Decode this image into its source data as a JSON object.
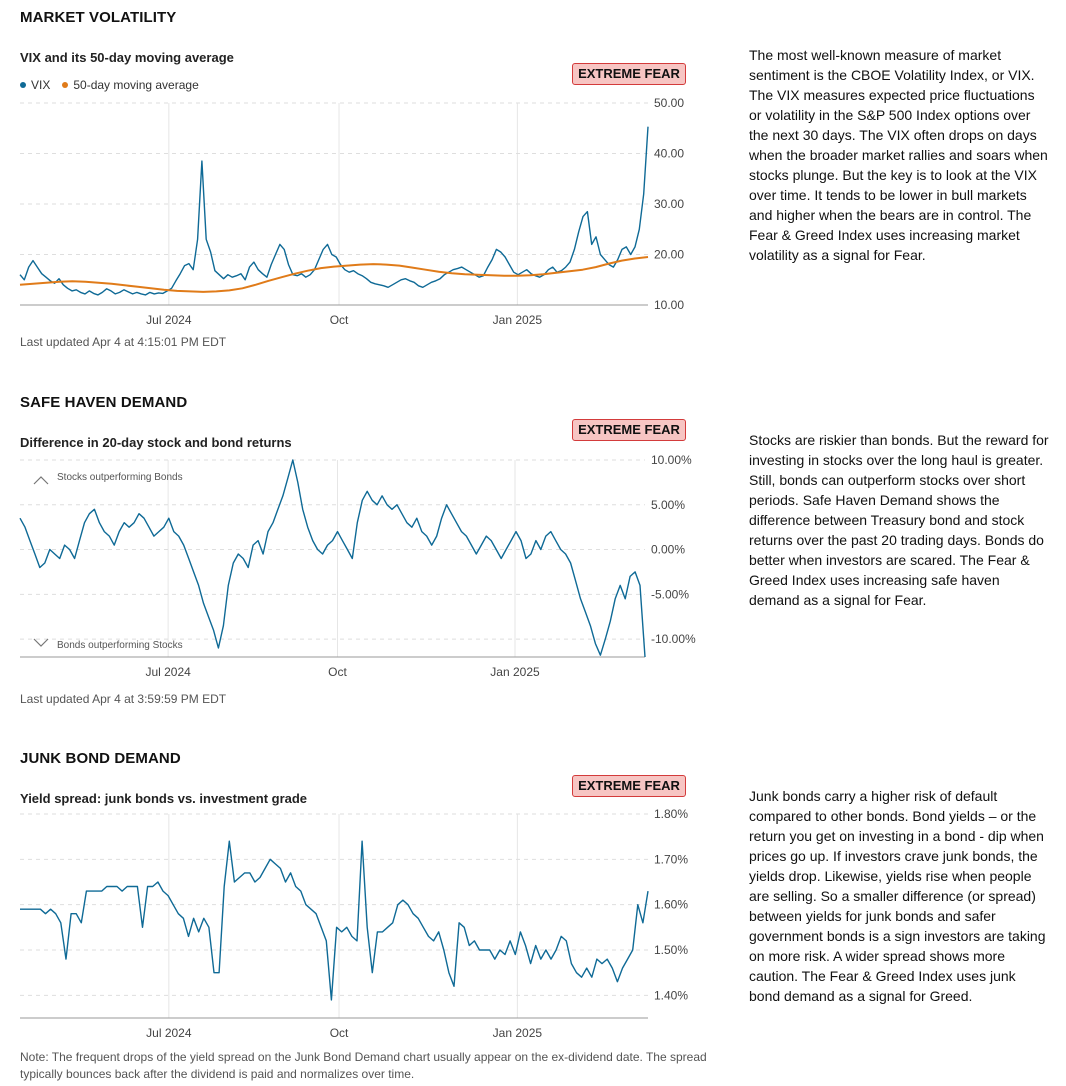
{
  "sections": [
    {
      "title": "MARKET VOLATILITY",
      "chart_title": "VIX and its 50-day moving average",
      "badge": "EXTREME FEAR",
      "legend": [
        {
          "label": "VIX",
          "color": "#0f6a96"
        },
        {
          "label": "50-day moving average",
          "color": "#e07b19"
        }
      ],
      "updated": "Last updated Apr 4 at 4:15:01 PM EDT",
      "description": "The most well-known measure of market sentiment is the CBOE Volatility Index, or VIX. The VIX measures expected price fluctuations or volatility in the S&P 500 Index options over the next 30 days. The VIX often drops on days when the broader market rallies and soars when stocks plunge. But the key is to look at the VIX over time. It tends to be lower in bull markets and higher when the bears are in control. The Fear & Greed Index uses increasing market volatility as a signal for Fear."
    },
    {
      "title": "SAFE HAVEN DEMAND",
      "chart_title": "Difference in 20-day stock and bond returns",
      "badge": "EXTREME FEAR",
      "annotations": [
        "Stocks outperforming Bonds",
        "Bonds outperforming Stocks"
      ],
      "updated": "Last updated Apr 4 at 3:59:59 PM EDT",
      "description": "Stocks are riskier than bonds. But the reward for investing in stocks over the long haul is greater. Still, bonds can outperform stocks over short periods. Safe Haven Demand shows the difference between Treasury bond and stock returns over the past 20 trading days. Bonds do better when investors are scared. The Fear & Greed Index uses increasing safe haven demand as a signal for Fear."
    },
    {
      "title": "JUNK BOND DEMAND",
      "chart_title": "Yield spread: junk bonds vs. investment grade",
      "badge": "EXTREME FEAR",
      "description": "Junk bonds carry a higher risk of default compared to other bonds. Bond yields – or the return you get on investing in a bond - dip when prices go up. If investors crave junk bonds, the yields drop. Likewise, yields rise when people are selling. So a smaller difference (or spread) between yields for junk bonds and safer government bonds is a sign investors are taking on more risk. A wider spread shows more caution. The Fear & Greed Index uses junk bond demand as a signal for Greed."
    }
  ],
  "note": "Note: The frequent drops of the yield spread on the Junk Bond Demand chart usually appear on the ex-dividend date. The spread typically bounces back after the dividend is paid and normalizes over time.",
  "chart_data": [
    {
      "type": "line",
      "title": "VIX and its 50-day moving average",
      "x_tick_labels": [
        "Jul 2024",
        "Oct",
        "Jan 2025"
      ],
      "y_tick_labels": [
        "10.00",
        "20.00",
        "30.00",
        "40.00",
        "50.00"
      ],
      "ylim": [
        10,
        50
      ],
      "grid": true,
      "legend": "top-left",
      "series": [
        {
          "name": "VIX",
          "color": "#0f6a96",
          "values": [
            16.0,
            15.0,
            17.5,
            18.8,
            17.5,
            16.2,
            15.5,
            14.8,
            14.3,
            15.2,
            14.0,
            13.3,
            12.8,
            13.0,
            12.5,
            12.2,
            12.8,
            12.3,
            12.0,
            12.5,
            13.2,
            12.8,
            12.2,
            12.5,
            13.0,
            12.6,
            12.2,
            12.5,
            12.2,
            12.0,
            12.5,
            12.2,
            12.4,
            12.3,
            12.8,
            13.3,
            14.8,
            16.2,
            17.8,
            18.2,
            17.0,
            23.0,
            38.5,
            23.0,
            20.5,
            16.8,
            16.0,
            15.2,
            16.0,
            15.5,
            15.8,
            16.2,
            15.0,
            17.5,
            18.5,
            17.0,
            16.2,
            15.5,
            18.0,
            20.0,
            22.0,
            21.0,
            18.0,
            16.0,
            15.8,
            16.2,
            15.5,
            16.0,
            17.0,
            19.0,
            21.0,
            22.0,
            20.0,
            19.5,
            18.0,
            17.0,
            16.5,
            16.8,
            16.2,
            15.8,
            15.2,
            14.5,
            14.2,
            14.0,
            13.8,
            13.5,
            14.0,
            14.5,
            15.0,
            15.2,
            14.8,
            14.5,
            13.8,
            13.5,
            14.0,
            14.5,
            14.8,
            15.2,
            16.0,
            16.5,
            17.0,
            17.2,
            17.5,
            17.0,
            16.5,
            16.0,
            15.5,
            15.8,
            17.5,
            19.0,
            21.0,
            20.5,
            19.5,
            18.0,
            16.5,
            16.0,
            16.5,
            17.0,
            16.2,
            15.8,
            15.5,
            16.0,
            17.0,
            17.5,
            16.5,
            16.8,
            17.5,
            18.5,
            21.0,
            24.5,
            27.5,
            28.5,
            22.0,
            23.5,
            20.0,
            19.0,
            18.0,
            17.5,
            19.0,
            21.0,
            21.5,
            20.0,
            21.5,
            25.0,
            32.0,
            45.3
          ]
        },
        {
          "name": "50-day moving average",
          "color": "#e07b19",
          "values": [
            14.0,
            14.2,
            14.4,
            14.6,
            14.7,
            14.6,
            14.4,
            14.2,
            13.9,
            13.6,
            13.3,
            13.0,
            12.8,
            12.7,
            12.6,
            12.7,
            12.9,
            13.3,
            14.0,
            14.8,
            15.5,
            16.2,
            16.8,
            17.3,
            17.6,
            17.8,
            18.0,
            18.1,
            18.0,
            17.8,
            17.4,
            17.0,
            16.6,
            16.3,
            16.1,
            16.0,
            15.9,
            15.8,
            15.8,
            15.9,
            16.1,
            16.4,
            16.7,
            17.0,
            17.5,
            18.2,
            18.8,
            19.2,
            19.5
          ]
        }
      ]
    },
    {
      "type": "line",
      "title": "Difference in 20-day stock and bond returns",
      "x_tick_labels": [
        "Jul 2024",
        "Oct",
        "Jan 2025"
      ],
      "y_tick_labels": [
        "-10.00%",
        "-5.00%",
        "0.00%",
        "5.00%",
        "10.00%"
      ],
      "ylim": [
        -12,
        10
      ],
      "grid": true,
      "series": [
        {
          "name": "",
          "color": "#0f6a96",
          "values": [
            3.5,
            2.5,
            1.0,
            -0.5,
            -2.0,
            -1.5,
            0.0,
            -0.5,
            -1.0,
            0.5,
            0.0,
            -1.0,
            1.0,
            3.0,
            4.0,
            4.5,
            3.0,
            2.0,
            1.5,
            0.5,
            2.0,
            3.0,
            2.5,
            3.0,
            4.0,
            3.5,
            2.5,
            1.5,
            2.0,
            2.5,
            3.5,
            2.0,
            1.5,
            0.5,
            -1.0,
            -2.5,
            -4.0,
            -6.0,
            -7.5,
            -9.0,
            -11.0,
            -8.5,
            -4.0,
            -1.5,
            -0.5,
            -1.0,
            -2.0,
            0.5,
            1.0,
            -0.5,
            2.0,
            3.0,
            4.5,
            6.0,
            8.0,
            10.0,
            7.5,
            4.5,
            2.5,
            1.0,
            0.0,
            -0.5,
            0.5,
            1.0,
            2.0,
            1.0,
            0.0,
            -1.0,
            3.0,
            5.5,
            6.5,
            5.5,
            5.0,
            6.0,
            5.0,
            4.5,
            5.0,
            4.0,
            3.0,
            2.5,
            3.5,
            2.0,
            1.5,
            0.5,
            1.5,
            3.5,
            5.0,
            4.0,
            3.0,
            2.0,
            1.5,
            0.5,
            -0.5,
            0.5,
            1.5,
            1.0,
            0.0,
            -1.0,
            0.0,
            1.0,
            2.0,
            1.0,
            -1.0,
            -0.5,
            1.0,
            0.0,
            1.5,
            2.0,
            1.0,
            0.0,
            -0.5,
            -1.5,
            -3.5,
            -5.5,
            -7.0,
            -8.5,
            -10.5,
            -11.8,
            -10.0,
            -8.0,
            -5.5,
            -4.0,
            -5.5,
            -3.0,
            -2.5,
            -4.0,
            -12.0
          ]
        }
      ]
    },
    {
      "type": "line",
      "title": "Yield spread: junk bonds vs. investment grade",
      "x_tick_labels": [
        "Jul 2024",
        "Oct",
        "Jan 2025"
      ],
      "y_tick_labels": [
        "1.40%",
        "1.50%",
        "1.60%",
        "1.70%",
        "1.80%"
      ],
      "ylim": [
        1.35,
        1.8
      ],
      "grid": true,
      "series": [
        {
          "name": "",
          "color": "#0f6a96",
          "values": [
            1.59,
            1.59,
            1.59,
            1.59,
            1.59,
            1.58,
            1.59,
            1.58,
            1.56,
            1.48,
            1.58,
            1.58,
            1.56,
            1.63,
            1.63,
            1.63,
            1.63,
            1.64,
            1.64,
            1.64,
            1.63,
            1.64,
            1.64,
            1.64,
            1.55,
            1.64,
            1.64,
            1.65,
            1.63,
            1.62,
            1.6,
            1.58,
            1.57,
            1.53,
            1.57,
            1.54,
            1.57,
            1.55,
            1.45,
            1.45,
            1.64,
            1.74,
            1.65,
            1.66,
            1.67,
            1.67,
            1.65,
            1.66,
            1.68,
            1.7,
            1.69,
            1.68,
            1.65,
            1.67,
            1.64,
            1.63,
            1.6,
            1.59,
            1.58,
            1.55,
            1.52,
            1.39,
            1.55,
            1.54,
            1.55,
            1.53,
            1.52,
            1.74,
            1.55,
            1.45,
            1.54,
            1.54,
            1.55,
            1.56,
            1.6,
            1.61,
            1.6,
            1.58,
            1.57,
            1.55,
            1.53,
            1.52,
            1.54,
            1.5,
            1.45,
            1.42,
            1.56,
            1.55,
            1.51,
            1.52,
            1.5,
            1.5,
            1.5,
            1.48,
            1.5,
            1.49,
            1.52,
            1.49,
            1.54,
            1.51,
            1.47,
            1.51,
            1.48,
            1.5,
            1.48,
            1.5,
            1.53,
            1.52,
            1.47,
            1.45,
            1.44,
            1.46,
            1.44,
            1.48,
            1.47,
            1.48,
            1.46,
            1.43,
            1.46,
            1.48,
            1.5,
            1.6,
            1.56,
            1.63
          ]
        }
      ]
    }
  ]
}
